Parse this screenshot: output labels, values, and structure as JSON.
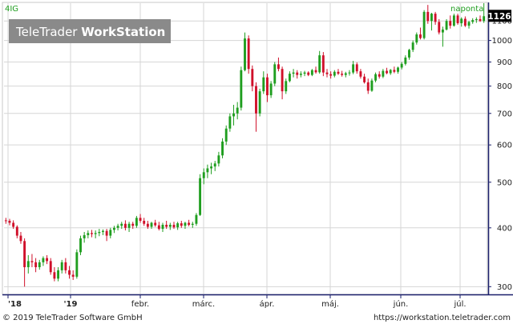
{
  "header": {
    "symbol": "4IG",
    "period": "naponta",
    "watermark_part1": "TeleTrader ",
    "watermark_part2": "WorkStation"
  },
  "footer": {
    "copyright": "© 2019 TeleTrader Software GmbH",
    "url": "https://workstation.teletrader.com"
  },
  "colors": {
    "up": "#1f9e1f",
    "down": "#d0102a",
    "grid": "#d6d6d6",
    "axis_line": "#1a1f6b",
    "price_box": "#000000",
    "price_box_text": "#ffffff"
  },
  "chart_data": {
    "type": "candlestick",
    "title": "",
    "xlabel": "",
    "ylabel": "",
    "y_scale": "log",
    "ylim": [
      290,
      1200
    ],
    "y_ticks": [
      300,
      400,
      500,
      600,
      700,
      800,
      900,
      1000,
      1100
    ],
    "x_ticks": [
      "'18",
      "'19",
      "febr.",
      "márc.",
      "ápr.",
      "máj.",
      "jún.",
      "júl."
    ],
    "last_price": "1126",
    "grid": true,
    "series": [
      {
        "values": [
          [
            415,
            420,
            408,
            414
          ],
          [
            414,
            418,
            405,
            410
          ],
          [
            410,
            415,
            398,
            402
          ],
          [
            402,
            405,
            380,
            385
          ],
          [
            385,
            392,
            370,
            375
          ],
          [
            375,
            380,
            300,
            330
          ],
          [
            330,
            350,
            320,
            340
          ],
          [
            340,
            352,
            330,
            338
          ],
          [
            338,
            345,
            322,
            330
          ],
          [
            330,
            342,
            326,
            338
          ],
          [
            338,
            348,
            332,
            345
          ],
          [
            345,
            350,
            335,
            340
          ],
          [
            340,
            345,
            318,
            322
          ],
          [
            322,
            330,
            308,
            312
          ],
          [
            312,
            330,
            308,
            325
          ],
          [
            325,
            342,
            320,
            338
          ],
          [
            338,
            345,
            320,
            325
          ],
          [
            325,
            332,
            312,
            318
          ],
          [
            318,
            325,
            310,
            315
          ],
          [
            315,
            360,
            312,
            355
          ],
          [
            355,
            385,
            350,
            380
          ],
          [
            380,
            392,
            372,
            386
          ],
          [
            386,
            395,
            380,
            390
          ],
          [
            390,
            396,
            382,
            388
          ],
          [
            388,
            395,
            380,
            390
          ],
          [
            390,
            398,
            384,
            392
          ],
          [
            392,
            397,
            386,
            394
          ],
          [
            394,
            398,
            375,
            385
          ],
          [
            385,
            400,
            380,
            396
          ],
          [
            396,
            404,
            390,
            400
          ],
          [
            400,
            408,
            395,
            404
          ],
          [
            404,
            412,
            398,
            408
          ],
          [
            408,
            415,
            395,
            400
          ],
          [
            400,
            412,
            392,
            408
          ],
          [
            408,
            412,
            398,
            404
          ],
          [
            404,
            424,
            400,
            420
          ],
          [
            420,
            428,
            410,
            414
          ],
          [
            414,
            420,
            404,
            408
          ],
          [
            408,
            414,
            398,
            402
          ],
          [
            402,
            412,
            398,
            410
          ],
          [
            410,
            416,
            402,
            405
          ],
          [
            405,
            412,
            395,
            398
          ],
          [
            398,
            410,
            392,
            406
          ],
          [
            406,
            414,
            398,
            402
          ],
          [
            402,
            410,
            396,
            406
          ],
          [
            406,
            412,
            398,
            401
          ],
          [
            401,
            412,
            396,
            409
          ],
          [
            409,
            414,
            400,
            404
          ],
          [
            404,
            412,
            398,
            410
          ],
          [
            410,
            416,
            403,
            406
          ],
          [
            406,
            412,
            400,
            408
          ],
          [
            408,
            430,
            404,
            426
          ],
          [
            426,
            520,
            424,
            510
          ],
          [
            510,
            535,
            495,
            525
          ],
          [
            525,
            545,
            510,
            535
          ],
          [
            535,
            550,
            520,
            540
          ],
          [
            540,
            555,
            528,
            548
          ],
          [
            548,
            580,
            540,
            570
          ],
          [
            570,
            620,
            562,
            610
          ],
          [
            610,
            660,
            600,
            650
          ],
          [
            650,
            700,
            640,
            690
          ],
          [
            690,
            730,
            660,
            700
          ],
          [
            700,
            740,
            680,
            720
          ],
          [
            720,
            880,
            710,
            865
          ],
          [
            865,
            1040,
            860,
            1010
          ],
          [
            1010,
            1025,
            850,
            870
          ],
          [
            870,
            885,
            780,
            800
          ],
          [
            800,
            815,
            640,
            700
          ],
          [
            700,
            790,
            690,
            780
          ],
          [
            780,
            860,
            770,
            835
          ],
          [
            835,
            850,
            740,
            765
          ],
          [
            765,
            820,
            755,
            810
          ],
          [
            810,
            900,
            800,
            890
          ],
          [
            890,
            920,
            860,
            870
          ],
          [
            870,
            880,
            750,
            780
          ],
          [
            780,
            830,
            770,
            820
          ],
          [
            820,
            860,
            815,
            850
          ],
          [
            850,
            870,
            835,
            855
          ],
          [
            855,
            865,
            830,
            845
          ],
          [
            845,
            860,
            835,
            850
          ],
          [
            850,
            862,
            840,
            855
          ],
          [
            855,
            860,
            840,
            845
          ],
          [
            845,
            870,
            840,
            865
          ],
          [
            865,
            880,
            850,
            856
          ],
          [
            856,
            950,
            850,
            930
          ],
          [
            930,
            945,
            840,
            855
          ],
          [
            855,
            870,
            835,
            848
          ],
          [
            848,
            860,
            830,
            842
          ],
          [
            842,
            865,
            835,
            858
          ],
          [
            858,
            870,
            845,
            850
          ],
          [
            850,
            862,
            838,
            845
          ],
          [
            845,
            858,
            835,
            852
          ],
          [
            852,
            865,
            842,
            855
          ],
          [
            855,
            905,
            848,
            890
          ],
          [
            890,
            898,
            850,
            860
          ],
          [
            860,
            870,
            830,
            838
          ],
          [
            838,
            850,
            810,
            815
          ],
          [
            815,
            830,
            770,
            782
          ],
          [
            782,
            830,
            778,
            822
          ],
          [
            822,
            855,
            815,
            848
          ],
          [
            848,
            860,
            830,
            838
          ],
          [
            838,
            870,
            832,
            862
          ],
          [
            862,
            875,
            848,
            852
          ],
          [
            852,
            870,
            845,
            866
          ],
          [
            866,
            880,
            852,
            858
          ],
          [
            858,
            880,
            850,
            876
          ],
          [
            876,
            900,
            868,
            892
          ],
          [
            892,
            930,
            885,
            920
          ],
          [
            920,
            960,
            910,
            955
          ],
          [
            955,
            1000,
            945,
            990
          ],
          [
            990,
            1040,
            980,
            1030
          ],
          [
            1030,
            1065,
            1005,
            1012
          ],
          [
            1012,
            1160,
            1005,
            1150
          ],
          [
            1150,
            1190,
            1085,
            1100
          ],
          [
            1100,
            1145,
            1050,
            1140
          ],
          [
            1140,
            1150,
            1080,
            1095
          ],
          [
            1095,
            1110,
            1030,
            1040
          ],
          [
            1040,
            1070,
            970,
            1055
          ],
          [
            1055,
            1110,
            1050,
            1100
          ],
          [
            1100,
            1130,
            1060,
            1075
          ],
          [
            1075,
            1140,
            1070,
            1130
          ],
          [
            1130,
            1140,
            1080,
            1088
          ],
          [
            1088,
            1120,
            1070,
            1112
          ],
          [
            1112,
            1125,
            1068,
            1075
          ],
          [
            1075,
            1100,
            1060,
            1095
          ],
          [
            1095,
            1115,
            1085,
            1105
          ],
          [
            1105,
            1120,
            1090,
            1110
          ],
          [
            1110,
            1130,
            1095,
            1100
          ],
          [
            1100,
            1200,
            1090,
            1126
          ]
        ]
      }
    ]
  }
}
